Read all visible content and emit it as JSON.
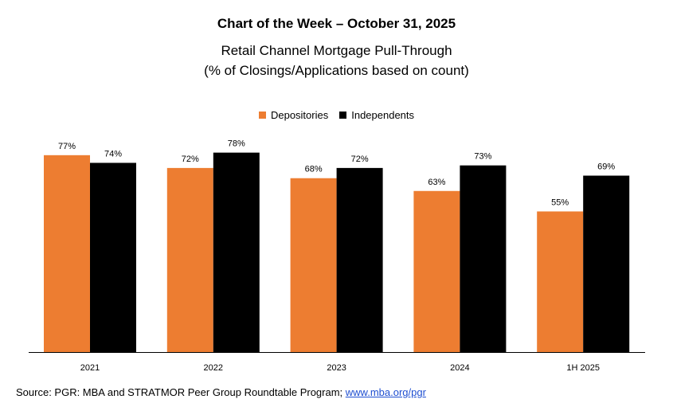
{
  "chart_data": {
    "type": "bar",
    "title": "Chart of the Week – October 31, 2025",
    "subtitle_line1": "Retail Channel Mortgage Pull-Through",
    "subtitle_line2": "(% of Closings/Applications based on count)",
    "categories": [
      "2021",
      "2022",
      "2023",
      "2024",
      "1H 2025"
    ],
    "series": [
      {
        "name": "Depositories",
        "color": "#ED7D31",
        "values": [
          77,
          72,
          68,
          63,
          55
        ],
        "labels": [
          "77%",
          "72%",
          "68%",
          "63%",
          "55%"
        ]
      },
      {
        "name": "Independents",
        "color": "#000000",
        "values": [
          74,
          78,
          72,
          73,
          69
        ],
        "labels": [
          "74%",
          "78%",
          "72%",
          "73%",
          "69%"
        ]
      }
    ],
    "ylim": [
      0,
      80
    ],
    "legend_position": "top-center",
    "grid": false
  },
  "source": {
    "prefix": "Source: PGR: MBA and STRATMOR Peer Group Roundtable Program; ",
    "link_text": "www.mba.org/pgr"
  }
}
